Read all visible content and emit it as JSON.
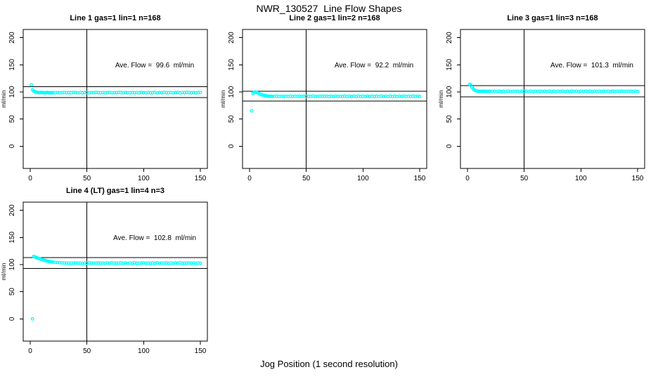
{
  "page_title": "NWR_130527  Line Flow Shapes",
  "xlabel": "Jog Position (1 second resolution)",
  "colors": {
    "point": "#00FFFF",
    "line": "#000000",
    "background": "#FFFFFF"
  },
  "chart_data": [
    {
      "type": "scatter",
      "title": "Line 1 gas=1 lin=1 n=168",
      "annotation": "Ave. Flow =  99.6  ml/min",
      "ave_flow_ml_min": 99.6,
      "ylabel": "ml/min",
      "x_ticks": [
        0,
        50,
        100,
        150
      ],
      "y_ticks": [
        0,
        50,
        100,
        150,
        200
      ],
      "xlim": [
        -6.2,
        156.2
      ],
      "ylim": [
        -41,
        215
      ],
      "vline_x": 50,
      "ref_hlines": [
        109.6,
        89.6
      ],
      "points": [
        [
          1,
          113
        ],
        [
          2,
          104.0
        ],
        [
          3,
          101.6
        ],
        [
          4,
          100.4
        ],
        [
          5,
          99.7
        ],
        [
          6,
          99.3
        ],
        [
          7,
          99.0
        ],
        [
          8,
          98.6
        ],
        [
          9,
          99.1
        ],
        [
          10,
          98.4
        ],
        [
          11,
          98.9
        ],
        [
          12,
          98.3
        ],
        [
          13,
          98.8
        ],
        [
          14,
          98.5
        ],
        [
          15,
          99.0
        ],
        [
          16,
          98.2
        ],
        [
          17,
          98.8
        ],
        [
          18,
          98.4
        ],
        [
          19,
          98.9
        ],
        [
          20,
          98.3
        ],
        [
          22,
          98.4
        ],
        [
          24,
          98.9
        ],
        [
          26,
          98.2
        ],
        [
          28,
          98.7
        ],
        [
          30,
          99.0
        ],
        [
          32,
          98.3
        ],
        [
          34,
          98.8
        ],
        [
          36,
          98.5
        ],
        [
          38,
          99.1
        ],
        [
          40,
          98.6
        ],
        [
          42,
          98.4
        ],
        [
          44,
          98.9
        ],
        [
          46,
          98.2
        ],
        [
          48,
          98.7
        ],
        [
          50,
          99.0
        ],
        [
          52,
          98.3
        ],
        [
          54,
          98.8
        ],
        [
          56,
          98.5
        ],
        [
          58,
          99.1
        ],
        [
          60,
          98.6
        ],
        [
          62,
          98.4
        ],
        [
          64,
          98.9
        ],
        [
          66,
          98.2
        ],
        [
          68,
          98.7
        ],
        [
          70,
          99.0
        ],
        [
          72,
          98.3
        ],
        [
          74,
          98.8
        ],
        [
          76,
          98.5
        ],
        [
          78,
          99.1
        ],
        [
          80,
          98.6
        ],
        [
          82,
          98.4
        ],
        [
          84,
          98.9
        ],
        [
          86,
          98.2
        ],
        [
          88,
          98.7
        ],
        [
          90,
          99.0
        ],
        [
          92,
          98.3
        ],
        [
          94,
          98.8
        ],
        [
          96,
          98.5
        ],
        [
          98,
          99.1
        ],
        [
          100,
          98.6
        ],
        [
          102,
          98.4
        ],
        [
          104,
          98.9
        ],
        [
          106,
          98.2
        ],
        [
          108,
          98.7
        ],
        [
          110,
          99.0
        ],
        [
          112,
          98.3
        ],
        [
          114,
          98.8
        ],
        [
          116,
          98.5
        ],
        [
          118,
          99.1
        ],
        [
          120,
          98.6
        ],
        [
          122,
          98.4
        ],
        [
          124,
          98.9
        ],
        [
          126,
          98.2
        ],
        [
          128,
          98.7
        ],
        [
          130,
          99.0
        ],
        [
          132,
          98.3
        ],
        [
          134,
          98.8
        ],
        [
          136,
          98.5
        ],
        [
          138,
          99.1
        ],
        [
          140,
          98.6
        ],
        [
          142,
          98.4
        ],
        [
          144,
          98.9
        ],
        [
          146,
          98.2
        ],
        [
          148,
          98.7
        ],
        [
          150,
          99.0
        ]
      ]
    },
    {
      "type": "scatter",
      "title": "Line 2 gas=1 lin=2 n=168",
      "annotation": "Ave. Flow =  92.2  ml/min",
      "ave_flow_ml_min": 92.2,
      "ylabel": "ml/min",
      "x_ticks": [
        0,
        50,
        100,
        150
      ],
      "y_ticks": [
        0,
        50,
        100,
        150,
        200
      ],
      "xlim": [
        -6.2,
        156.2
      ],
      "ylim": [
        -41,
        215
      ],
      "vline_x": 50,
      "ref_hlines": [
        101.4,
        83.0
      ],
      "points": [
        [
          2,
          65
        ],
        [
          3,
          97.0
        ],
        [
          4,
          99.6
        ],
        [
          5,
          100.0
        ],
        [
          6,
          99.4
        ],
        [
          7,
          98.4
        ],
        [
          8,
          97.3
        ],
        [
          9,
          96.3
        ],
        [
          10,
          95.4
        ],
        [
          11,
          94.6
        ],
        [
          12,
          93.9
        ],
        [
          13,
          93.4
        ],
        [
          14,
          92.9
        ],
        [
          15,
          92.6
        ],
        [
          16,
          92.3
        ],
        [
          17,
          92.1
        ],
        [
          18,
          92.0
        ],
        [
          19,
          91.9
        ],
        [
          20,
          91.8
        ],
        [
          22,
          91.8
        ],
        [
          24,
          92.2
        ],
        [
          26,
          91.6
        ],
        [
          28,
          92.0
        ],
        [
          30,
          91.5
        ],
        [
          32,
          92.1
        ],
        [
          34,
          91.7
        ],
        [
          36,
          92.3
        ],
        [
          38,
          91.6
        ],
        [
          40,
          91.9
        ],
        [
          42,
          91.8
        ],
        [
          44,
          92.2
        ],
        [
          46,
          91.6
        ],
        [
          48,
          92.0
        ],
        [
          50,
          91.5
        ],
        [
          52,
          92.1
        ],
        [
          54,
          91.7
        ],
        [
          56,
          92.3
        ],
        [
          58,
          91.6
        ],
        [
          60,
          91.9
        ],
        [
          62,
          91.8
        ],
        [
          64,
          92.2
        ],
        [
          66,
          91.6
        ],
        [
          68,
          92.0
        ],
        [
          70,
          91.5
        ],
        [
          72,
          92.1
        ],
        [
          74,
          91.7
        ],
        [
          76,
          92.3
        ],
        [
          78,
          91.6
        ],
        [
          80,
          91.9
        ],
        [
          82,
          91.8
        ],
        [
          84,
          92.2
        ],
        [
          86,
          91.6
        ],
        [
          88,
          92.0
        ],
        [
          90,
          91.5
        ],
        [
          92,
          92.1
        ],
        [
          94,
          91.7
        ],
        [
          96,
          92.3
        ],
        [
          98,
          91.6
        ],
        [
          100,
          91.9
        ],
        [
          102,
          91.8
        ],
        [
          104,
          92.2
        ],
        [
          106,
          91.6
        ],
        [
          108,
          92.0
        ],
        [
          110,
          91.5
        ],
        [
          112,
          92.1
        ],
        [
          114,
          91.7
        ],
        [
          116,
          92.3
        ],
        [
          118,
          91.6
        ],
        [
          120,
          91.9
        ],
        [
          122,
          91.8
        ],
        [
          124,
          92.2
        ],
        [
          126,
          91.6
        ],
        [
          128,
          92.0
        ],
        [
          130,
          91.5
        ],
        [
          132,
          92.1
        ],
        [
          134,
          91.7
        ],
        [
          136,
          92.3
        ],
        [
          138,
          91.6
        ],
        [
          140,
          91.9
        ],
        [
          142,
          91.8
        ],
        [
          144,
          92.2
        ],
        [
          146,
          91.6
        ],
        [
          148,
          92.0
        ],
        [
          150,
          91.5
        ]
      ]
    },
    {
      "type": "scatter",
      "title": "Line 3 gas=1 lin=3 n=168",
      "annotation": "Ave. Flow =  101.3  ml/min",
      "ave_flow_ml_min": 101.3,
      "ylabel": "ml/min",
      "x_ticks": [
        0,
        50,
        100,
        150
      ],
      "y_ticks": [
        0,
        50,
        100,
        150,
        200
      ],
      "xlim": [
        -6.2,
        156.2
      ],
      "ylim": [
        -41,
        215
      ],
      "vline_x": 50,
      "ref_hlines": [
        111.4,
        91.2
      ],
      "points": [
        [
          2,
          114
        ],
        [
          3,
          112.4
        ],
        [
          4,
          108.5
        ],
        [
          5,
          105.6
        ],
        [
          6,
          103.6
        ],
        [
          7,
          102.4
        ],
        [
          8,
          101.8
        ],
        [
          9,
          101.4
        ],
        [
          10,
          101.2
        ],
        [
          11,
          101.0
        ],
        [
          12,
          100.9
        ],
        [
          13,
          101.3
        ],
        [
          14,
          100.8
        ],
        [
          15,
          101.2
        ],
        [
          16,
          100.7
        ],
        [
          17,
          101.1
        ],
        [
          18,
          100.8
        ],
        [
          19,
          101.3
        ],
        [
          20,
          100.9
        ],
        [
          22,
          101.0
        ],
        [
          24,
          101.4
        ],
        [
          26,
          100.7
        ],
        [
          28,
          101.2
        ],
        [
          30,
          100.6
        ],
        [
          32,
          101.3
        ],
        [
          34,
          100.8
        ],
        [
          36,
          101.5
        ],
        [
          38,
          100.7
        ],
        [
          40,
          101.1
        ],
        [
          42,
          101.0
        ],
        [
          44,
          101.4
        ],
        [
          46,
          100.7
        ],
        [
          48,
          101.2
        ],
        [
          50,
          100.6
        ],
        [
          52,
          101.3
        ],
        [
          54,
          100.8
        ],
        [
          56,
          101.5
        ],
        [
          58,
          100.7
        ],
        [
          60,
          101.1
        ],
        [
          62,
          101.0
        ],
        [
          64,
          101.4
        ],
        [
          66,
          100.7
        ],
        [
          68,
          101.2
        ],
        [
          70,
          100.6
        ],
        [
          72,
          101.3
        ],
        [
          74,
          100.8
        ],
        [
          76,
          101.5
        ],
        [
          78,
          100.7
        ],
        [
          80,
          101.1
        ],
        [
          82,
          101.0
        ],
        [
          84,
          101.4
        ],
        [
          86,
          100.7
        ],
        [
          88,
          101.2
        ],
        [
          90,
          100.6
        ],
        [
          92,
          101.3
        ],
        [
          94,
          100.8
        ],
        [
          96,
          101.5
        ],
        [
          98,
          100.7
        ],
        [
          100,
          101.1
        ],
        [
          102,
          101.0
        ],
        [
          104,
          101.4
        ],
        [
          106,
          100.7
        ],
        [
          108,
          101.2
        ],
        [
          110,
          100.6
        ],
        [
          112,
          101.3
        ],
        [
          114,
          100.8
        ],
        [
          116,
          101.5
        ],
        [
          118,
          100.7
        ],
        [
          120,
          101.1
        ],
        [
          122,
          101.0
        ],
        [
          124,
          101.4
        ],
        [
          126,
          100.7
        ],
        [
          128,
          101.2
        ],
        [
          130,
          100.6
        ],
        [
          132,
          101.3
        ],
        [
          134,
          100.8
        ],
        [
          136,
          101.5
        ],
        [
          138,
          100.7
        ],
        [
          140,
          101.1
        ],
        [
          142,
          101.0
        ],
        [
          144,
          101.4
        ],
        [
          146,
          100.7
        ],
        [
          148,
          101.2
        ],
        [
          150,
          100.6
        ]
      ]
    },
    {
      "type": "scatter",
      "title": "Line 4 (LT) gas=1 lin=4 n=3",
      "annotation": "Ave. Flow =  102.8  ml/min",
      "ave_flow_ml_min": 102.8,
      "ylabel": "ml/min",
      "x_ticks": [
        0,
        50,
        100,
        150
      ],
      "y_ticks": [
        0,
        50,
        100,
        150,
        200
      ],
      "xlim": [
        -6.2,
        156.2
      ],
      "ylim": [
        -41,
        215
      ],
      "vline_x": 50,
      "ref_hlines": [
        113.1,
        92.5
      ],
      "points": [
        [
          2,
          0
        ],
        [
          3,
          115.0
        ],
        [
          4,
          114.3
        ],
        [
          5,
          113.4
        ],
        [
          6,
          112.5
        ],
        [
          7,
          111.7
        ],
        [
          8,
          110.9
        ],
        [
          9,
          110.2
        ],
        [
          10,
          109.5
        ],
        [
          11,
          108.8
        ],
        [
          12,
          108.2
        ],
        [
          13,
          107.6
        ],
        [
          14,
          107.0
        ],
        [
          15,
          106.5
        ],
        [
          16,
          106.0
        ],
        [
          17,
          105.6
        ],
        [
          18,
          105.2
        ],
        [
          19,
          104.9
        ],
        [
          20,
          104.6
        ],
        [
          22,
          104.1
        ],
        [
          24,
          103.7
        ],
        [
          26,
          103.4
        ],
        [
          28,
          103.1
        ],
        [
          30,
          102.9
        ],
        [
          32,
          102.8
        ],
        [
          34,
          102.7
        ],
        [
          36,
          102.6
        ],
        [
          38,
          102.6
        ],
        [
          40,
          103.0
        ],
        [
          42,
          102.4
        ],
        [
          44,
          102.8
        ],
        [
          46,
          102.3
        ],
        [
          48,
          102.9
        ],
        [
          50,
          102.5
        ],
        [
          52,
          103.1
        ],
        [
          54,
          102.4
        ],
        [
          56,
          102.7
        ],
        [
          58,
          102.6
        ],
        [
          60,
          103.0
        ],
        [
          62,
          102.4
        ],
        [
          64,
          102.8
        ],
        [
          66,
          102.3
        ],
        [
          68,
          102.9
        ],
        [
          70,
          102.5
        ],
        [
          72,
          103.1
        ],
        [
          74,
          102.4
        ],
        [
          76,
          102.7
        ],
        [
          78,
          102.6
        ],
        [
          80,
          103.0
        ],
        [
          82,
          102.4
        ],
        [
          84,
          102.8
        ],
        [
          86,
          102.3
        ],
        [
          88,
          102.9
        ],
        [
          90,
          102.5
        ],
        [
          92,
          103.1
        ],
        [
          94,
          102.4
        ],
        [
          96,
          102.7
        ],
        [
          98,
          102.6
        ],
        [
          100,
          103.0
        ],
        [
          102,
          102.4
        ],
        [
          104,
          102.8
        ],
        [
          106,
          102.3
        ],
        [
          108,
          102.9
        ],
        [
          110,
          102.5
        ],
        [
          112,
          103.1
        ],
        [
          114,
          102.4
        ],
        [
          116,
          102.7
        ],
        [
          118,
          102.6
        ],
        [
          120,
          103.0
        ],
        [
          122,
          102.4
        ],
        [
          124,
          102.8
        ],
        [
          126,
          102.3
        ],
        [
          128,
          102.9
        ],
        [
          130,
          102.5
        ],
        [
          132,
          103.1
        ],
        [
          134,
          102.4
        ],
        [
          136,
          102.7
        ],
        [
          138,
          102.6
        ],
        [
          140,
          103.0
        ],
        [
          142,
          102.4
        ],
        [
          144,
          102.8
        ],
        [
          146,
          102.3
        ],
        [
          148,
          102.9
        ],
        [
          150,
          102.5
        ]
      ]
    }
  ]
}
